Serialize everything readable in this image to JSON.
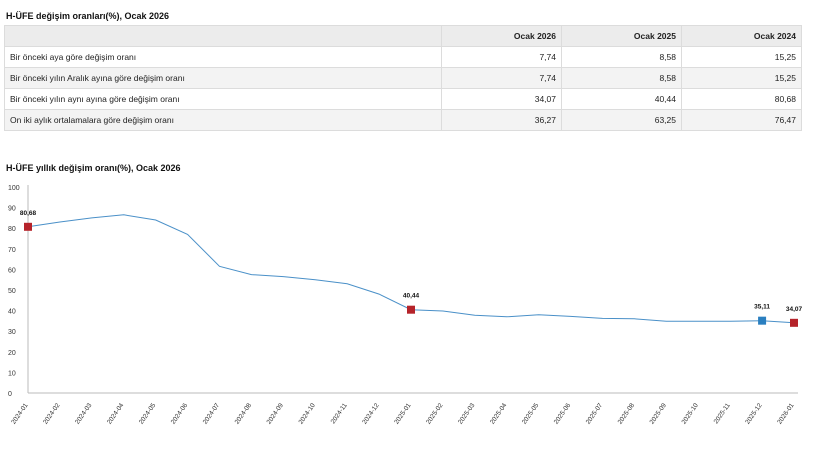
{
  "table_title": "H-ÜFE değişim oranları(%), Ocak 2026",
  "table": {
    "headers": [
      "",
      "Ocak 2026",
      "Ocak 2025",
      "Ocak 2024"
    ],
    "rows": [
      {
        "label": "Bir önceki aya göre değişim oranı",
        "values": [
          "7,74",
          "8,58",
          "15,25"
        ]
      },
      {
        "label": "Bir önceki yılın Aralık ayına göre değişim oranı",
        "values": [
          "7,74",
          "8,58",
          "15,25"
        ]
      },
      {
        "label": "Bir önceki yılın aynı ayına göre değişim oranı",
        "values": [
          "34,07",
          "40,44",
          "80,68"
        ]
      },
      {
        "label": "On iki aylık ortalamalara göre değişim oranı",
        "values": [
          "36,27",
          "63,25",
          "76,47"
        ]
      }
    ]
  },
  "chart_title": "H-ÜFE yıllık değişim oranı(%), Ocak 2026",
  "chart_data": {
    "type": "line",
    "title": "H-ÜFE yıllık değişim oranı(%), Ocak 2026",
    "xlabel": "",
    "ylabel": "",
    "ylim": [
      0,
      100
    ],
    "yticks": [
      0,
      10,
      20,
      30,
      40,
      50,
      60,
      70,
      80,
      90,
      100
    ],
    "categories": [
      "2024-01",
      "2024-02",
      "2024-03",
      "2024-04",
      "2024-05",
      "2024-06",
      "2024-07",
      "2024-08",
      "2024-09",
      "2024-10",
      "2024-11",
      "2024-12",
      "2025-01",
      "2025-02",
      "2025-03",
      "2025-04",
      "2025-05",
      "2025-06",
      "2025-07",
      "2025-08",
      "2025-09",
      "2025-10",
      "2025-11",
      "2025-12",
      "2026-01"
    ],
    "series": [
      {
        "name": "H-ÜFE yıllık değişim oranı",
        "color": "#4a90c8",
        "values": [
          80.68,
          83.0,
          85.0,
          86.5,
          84.0,
          77.0,
          61.5,
          57.5,
          56.5,
          55.0,
          53.0,
          48.0,
          40.44,
          39.8,
          37.7,
          37.0,
          38.0,
          37.2,
          36.2,
          36.0,
          34.8,
          34.8,
          34.8,
          35.11,
          34.07
        ]
      }
    ],
    "highlighted_points": [
      {
        "index": 0,
        "label": "80,68",
        "color": "#b5232a"
      },
      {
        "index": 12,
        "label": "40,44",
        "color": "#b5232a"
      },
      {
        "index": 23,
        "label": "35,11",
        "color": "#2a7fc0"
      },
      {
        "index": 24,
        "label": "34,07",
        "color": "#b5232a"
      }
    ]
  }
}
